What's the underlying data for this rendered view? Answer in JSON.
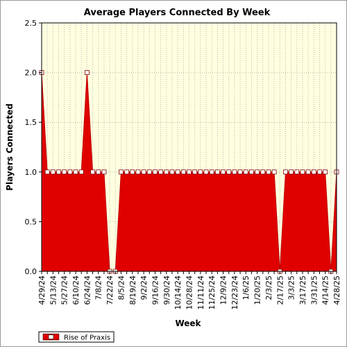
{
  "chart_data": {
    "type": "area",
    "title": "Average Players Connected By Week",
    "xlabel": "Week",
    "ylabel": "Players Connected",
    "ylim": [
      0,
      2.5
    ],
    "yticks": [
      "0.0",
      "0.5",
      "1.0",
      "1.5",
      "2.0",
      "2.5"
    ],
    "grid": true,
    "legend_position": "bottom-left",
    "colors": {
      "series": "#e00000",
      "plot_bg": "#ffffe0",
      "grid": "#b4b4b4"
    },
    "x": [
      "4/29/24",
      "5/6/24",
      "5/13/24",
      "5/20/24",
      "5/27/24",
      "6/3/24",
      "6/10/24",
      "6/17/24",
      "6/24/24",
      "7/1/24",
      "7/8/24",
      "7/15/24",
      "7/22/24",
      "7/29/24",
      "8/5/24",
      "8/12/24",
      "8/19/24",
      "8/26/24",
      "9/2/24",
      "9/9/24",
      "9/16/24",
      "9/23/24",
      "9/30/24",
      "10/7/24",
      "10/14/24",
      "10/21/24",
      "10/28/24",
      "11/4/24",
      "11/11/24",
      "11/18/24",
      "11/25/24",
      "12/2/24",
      "12/9/24",
      "12/16/24",
      "12/23/24",
      "12/30/24",
      "1/6/25",
      "1/13/25",
      "1/20/25",
      "1/27/25",
      "2/3/25",
      "2/10/25",
      "2/17/25",
      "2/24/25",
      "3/3/25",
      "3/10/25",
      "3/17/25",
      "3/24/25",
      "3/31/25",
      "4/7/25",
      "4/14/25",
      "4/21/25",
      "4/28/25"
    ],
    "xtick_labels": [
      "4/29/24",
      "5/13/24",
      "5/27/24",
      "6/10/24",
      "6/24/24",
      "7/8/24",
      "7/22/24",
      "8/5/24",
      "8/19/24",
      "9/2/24",
      "9/16/24",
      "9/30/24",
      "10/14/24",
      "10/28/24",
      "11/11/24",
      "11/25/24",
      "12/9/24",
      "12/23/24",
      "1/6/25",
      "1/20/25",
      "2/3/25",
      "2/17/25",
      "3/3/25",
      "3/17/25",
      "3/31/25",
      "4/14/25",
      "4/28/25"
    ],
    "series": [
      {
        "name": "Rise of Praxis",
        "values": [
          2,
          1,
          1,
          1,
          1,
          1,
          1,
          1,
          2,
          1,
          1,
          1,
          0,
          0,
          1,
          1,
          1,
          1,
          1,
          1,
          1,
          1,
          1,
          1,
          1,
          1,
          1,
          1,
          1,
          1,
          1,
          1,
          1,
          1,
          1,
          1,
          1,
          1,
          1,
          1,
          1,
          1,
          0,
          1,
          1,
          1,
          1,
          1,
          1,
          1,
          1,
          0,
          1
        ]
      }
    ]
  }
}
